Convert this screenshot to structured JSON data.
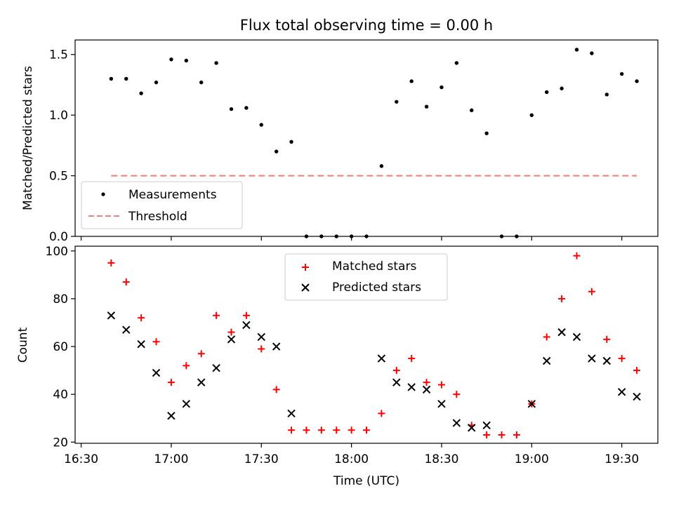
{
  "chart_data": [
    {
      "type": "scatter",
      "title": "Flux total observing time = 0.00 h",
      "xlabel": "",
      "ylabel": "Matched/Predicted stars",
      "x_axis": "time",
      "xlim": [
        "16:28",
        "19:42"
      ],
      "ylim": [
        0,
        1.62
      ],
      "yticks": [
        0,
        0.5,
        1.0,
        1.5
      ],
      "ytick_labels": [
        "0.0",
        "0.5",
        "1.0",
        "1.5"
      ],
      "grid": false,
      "legend_position": "lower-left",
      "colors": {
        "measurements": "#000000",
        "threshold": "#f08080"
      },
      "series": [
        {
          "name": "Measurements",
          "kind": "points",
          "x": [
            "16:40",
            "16:45",
            "16:50",
            "16:55",
            "17:00",
            "17:05",
            "17:10",
            "17:15",
            "17:20",
            "17:25",
            "17:30",
            "17:35",
            "17:40",
            "17:45",
            "17:50",
            "17:55",
            "18:00",
            "18:05",
            "18:10",
            "18:15",
            "18:20",
            "18:25",
            "18:30",
            "18:35",
            "18:40",
            "18:45",
            "18:50",
            "18:55",
            "19:00",
            "19:05",
            "19:10",
            "19:15",
            "19:20",
            "19:25",
            "19:30",
            "19:35"
          ],
          "y": [
            1.3,
            1.3,
            1.18,
            1.27,
            1.46,
            1.45,
            1.27,
            1.43,
            1.05,
            1.06,
            0.92,
            0.7,
            0.78,
            0,
            0,
            0,
            0,
            0,
            0.58,
            1.11,
            1.28,
            1.07,
            1.23,
            1.43,
            1.04,
            0.85,
            0,
            0,
            1.0,
            1.19,
            1.22,
            1.54,
            1.51,
            1.17,
            1.34,
            1.28
          ]
        },
        {
          "name": "Threshold",
          "kind": "dashed-line",
          "x": [
            "16:40",
            "19:35"
          ],
          "y": [
            0.5,
            0.5
          ]
        }
      ]
    },
    {
      "type": "scatter",
      "title": "",
      "xlabel": "Time (UTC)",
      "ylabel": "Count",
      "x_axis": "time",
      "xlim": [
        "16:28",
        "19:42"
      ],
      "xticks": [
        "16:30",
        "17:00",
        "17:30",
        "18:00",
        "18:30",
        "19:00",
        "19:30"
      ],
      "ylim": [
        19.5,
        102
      ],
      "yticks": [
        20,
        40,
        60,
        80,
        100
      ],
      "grid": false,
      "legend_position": "upper-center",
      "colors": {
        "matched": "#ff0000",
        "predicted": "#000000"
      },
      "series": [
        {
          "name": "Matched stars",
          "marker": "plus",
          "x": [
            "16:40",
            "16:45",
            "16:50",
            "16:55",
            "17:00",
            "17:05",
            "17:10",
            "17:15",
            "17:20",
            "17:25",
            "17:30",
            "17:35",
            "17:40",
            "17:45",
            "17:50",
            "17:55",
            "18:00",
            "18:05",
            "18:10",
            "18:15",
            "18:20",
            "18:25",
            "18:30",
            "18:35",
            "18:40",
            "18:45",
            "18:50",
            "18:55",
            "19:00",
            "19:05",
            "19:10",
            "19:15",
            "19:20",
            "19:25",
            "19:30",
            "19:35"
          ],
          "y": [
            95,
            87,
            72,
            62,
            45,
            52,
            57,
            73,
            66,
            73,
            59,
            42,
            25,
            25,
            25,
            25,
            25,
            25,
            32,
            50,
            55,
            45,
            44,
            40,
            27,
            23,
            23,
            23,
            36,
            64,
            80,
            98,
            83,
            63,
            55,
            50
          ]
        },
        {
          "name": "Predicted stars",
          "marker": "x",
          "x": [
            "16:40",
            "16:45",
            "16:50",
            "16:55",
            "17:00",
            "17:05",
            "17:10",
            "17:15",
            "17:20",
            "17:25",
            "17:30",
            "17:35",
            "17:40",
            "18:10",
            "18:15",
            "18:20",
            "18:25",
            "18:30",
            "18:35",
            "18:40",
            "18:45",
            "19:00",
            "19:05",
            "19:10",
            "19:15",
            "19:20",
            "19:25",
            "19:30",
            "19:35"
          ],
          "y": [
            73,
            67,
            61,
            49,
            31,
            36,
            45,
            51,
            63,
            69,
            64,
            60,
            32,
            55,
            45,
            43,
            42,
            36,
            28,
            26,
            27,
            36,
            54,
            66,
            64,
            55,
            54,
            41,
            39
          ]
        }
      ]
    }
  ]
}
